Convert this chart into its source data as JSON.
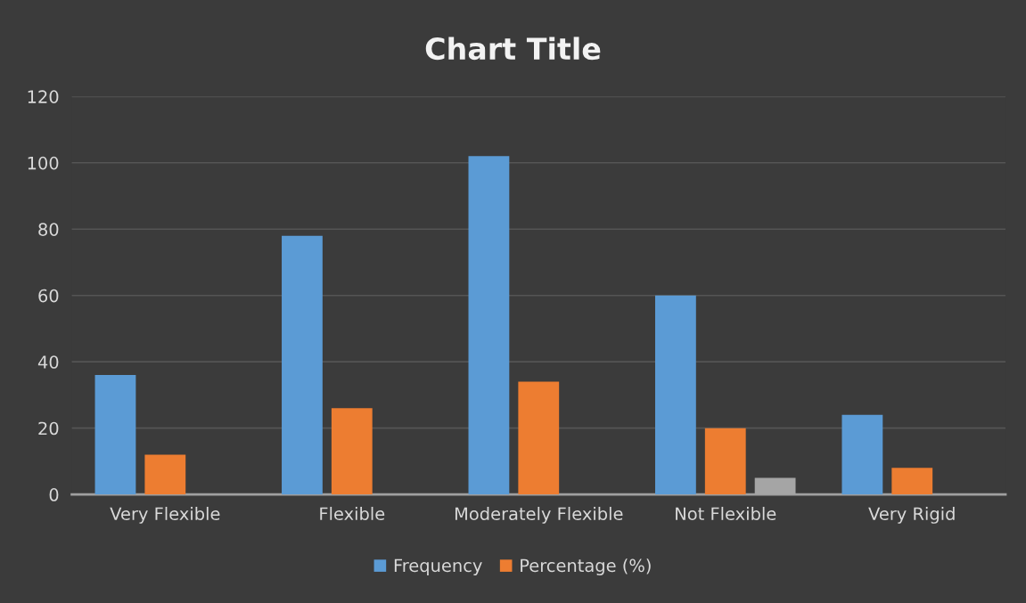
{
  "chart_data": {
    "type": "bar",
    "title": "Chart Title",
    "categories": [
      "Very Flexible",
      "Flexible",
      "Moderately Flexible",
      "Not Flexible",
      "Very Rigid"
    ],
    "series": [
      {
        "name": "Frequency",
        "color": "#5b9bd5",
        "values": [
          36,
          78,
          102,
          60,
          24
        ]
      },
      {
        "name": "Percentage (%)",
        "color": "#ed7d31",
        "values": [
          12,
          26,
          34,
          20,
          8
        ]
      },
      {
        "color": "#a5a5a5",
        "values": [
          null,
          null,
          null,
          5,
          null
        ]
      }
    ],
    "ylim": [
      0,
      120
    ],
    "yticks": [
      0,
      20,
      40,
      60,
      80,
      100,
      120
    ],
    "grid": "y",
    "legend": "bottom"
  }
}
